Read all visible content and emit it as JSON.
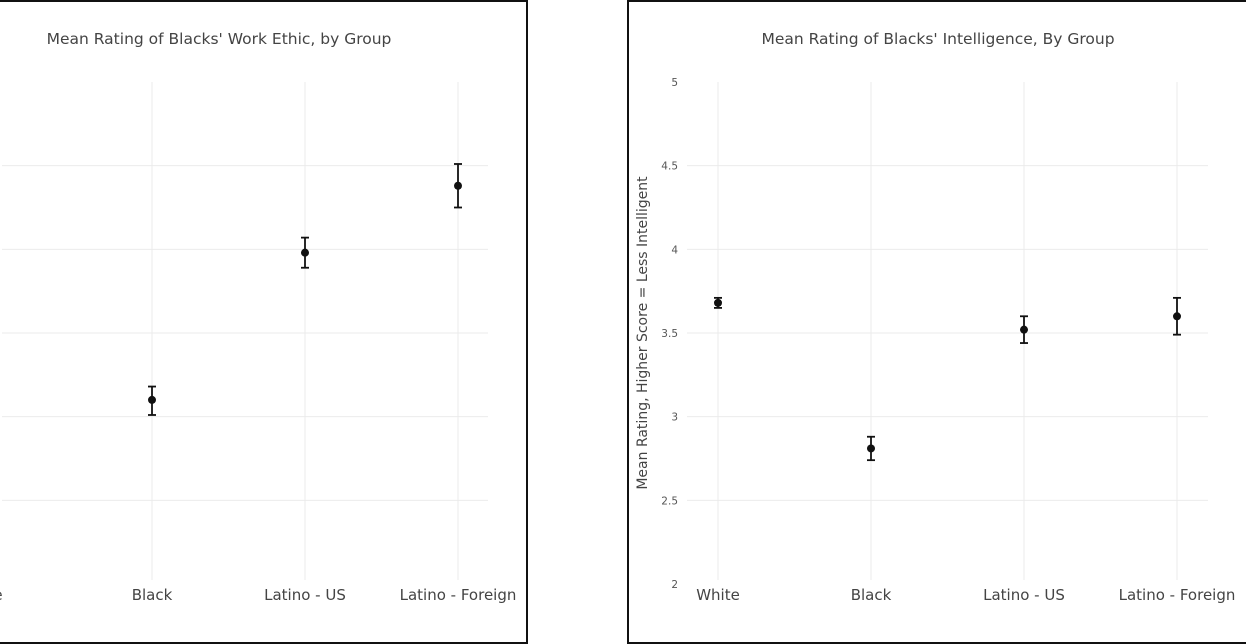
{
  "chart_data": [
    {
      "type": "scatter",
      "title": "Mean Rating of Blacks' Work Ethic, by Group",
      "ylabel": "",
      "ylim": [
        2,
        5
      ],
      "grid": true,
      "y_tick_labels_visible": false,
      "categories": [
        "White",
        "Black",
        "Latino - US",
        "Latino - Foreign"
      ],
      "visible_category_labels": [
        "e",
        "Black",
        "Latino - US",
        "Latino - Foreign"
      ],
      "points": [
        {
          "category": "Black",
          "mean": 3.1,
          "lower": 3.01,
          "upper": 3.18
        },
        {
          "category": "Latino - US",
          "mean": 3.98,
          "lower": 3.89,
          "upper": 4.07
        },
        {
          "category": "Latino - Foreign",
          "mean": 4.38,
          "lower": 4.25,
          "upper": 4.51
        }
      ]
    },
    {
      "type": "scatter",
      "title": "Mean Rating of Blacks' Intelligence, By Group",
      "ylabel": "Mean Rating, Higher Score = Less Intelligent",
      "ylim": [
        2,
        5
      ],
      "yticks": [
        "2",
        "2.5",
        "3",
        "3.5",
        "4",
        "4.5",
        "5"
      ],
      "grid": true,
      "categories": [
        "White",
        "Black",
        "Latino - US",
        "Latino - Foreign"
      ],
      "points": [
        {
          "category": "White",
          "mean": 3.68,
          "lower": 3.65,
          "upper": 3.71
        },
        {
          "category": "Black",
          "mean": 2.81,
          "lower": 2.74,
          "upper": 2.88
        },
        {
          "category": "Latino - US",
          "mean": 3.52,
          "lower": 3.44,
          "upper": 3.6
        },
        {
          "category": "Latino - Foreign",
          "mean": 3.6,
          "lower": 3.49,
          "upper": 3.71
        }
      ]
    }
  ]
}
